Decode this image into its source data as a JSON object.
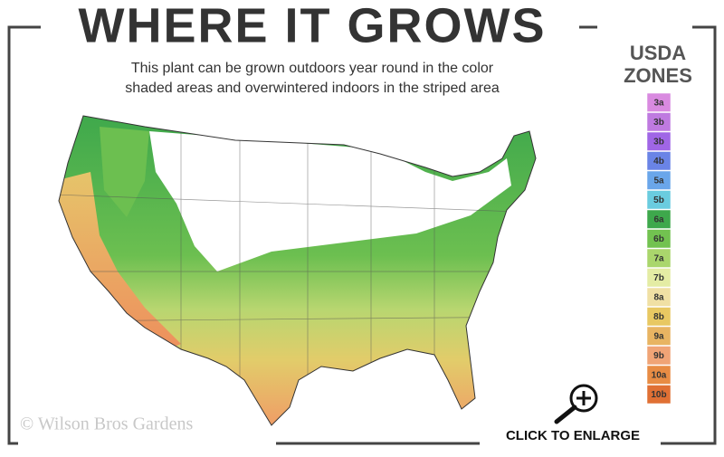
{
  "header": {
    "title": "WHERE IT GROWS",
    "subtitle_lines": [
      "This plant can be grown outdoors year round in the color",
      "shaded areas and overwintered indoors in the striped area"
    ]
  },
  "legend": {
    "title_lines": [
      "USDA",
      "ZONES"
    ],
    "zones": [
      {
        "label": "3a",
        "color": "#d98ae0"
      },
      {
        "label": "3b",
        "color": "#bf7ae0"
      },
      {
        "label": "3b",
        "color": "#a066e6"
      },
      {
        "label": "4b",
        "color": "#6a84e6"
      },
      {
        "label": "5a",
        "color": "#6aa6ea"
      },
      {
        "label": "5b",
        "color": "#6accdf"
      },
      {
        "label": "6a",
        "color": "#3ea84c"
      },
      {
        "label": "6b",
        "color": "#72c250"
      },
      {
        "label": "7a",
        "color": "#aad66c"
      },
      {
        "label": "7b",
        "color": "#e4eca4"
      },
      {
        "label": "8a",
        "color": "#f0e0a4"
      },
      {
        "label": "8b",
        "color": "#e8c862"
      },
      {
        "label": "9a",
        "color": "#e8b462"
      },
      {
        "label": "9b",
        "color": "#f0a476"
      },
      {
        "label": "10a",
        "color": "#e88c44"
      },
      {
        "label": "10b",
        "color": "#e07034"
      }
    ]
  },
  "watermark": "© Wilson Bros Gardens",
  "enlarge_button": "CLICK TO ENLARGE"
}
